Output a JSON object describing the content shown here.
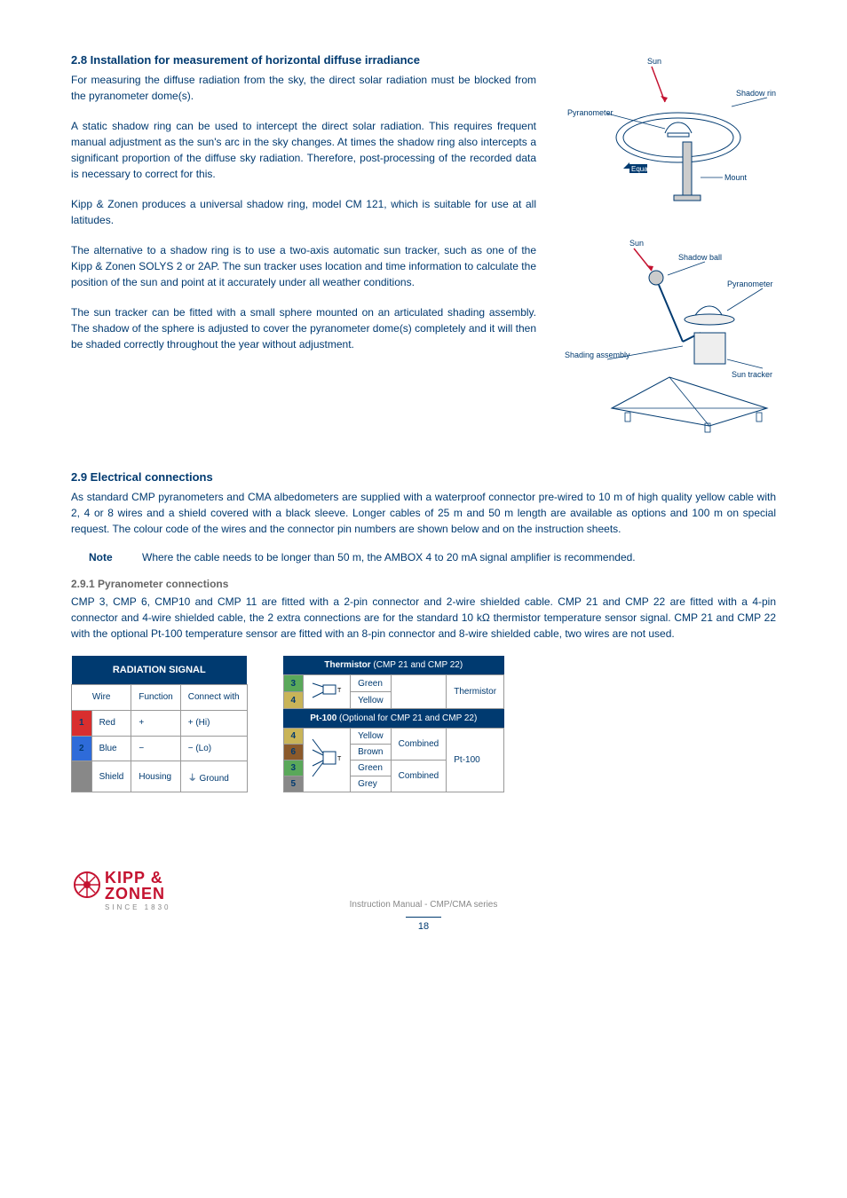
{
  "section28": {
    "heading": "2.8 Installation for measurement of horizontal diffuse irradiance",
    "p1": "For measuring the diffuse radiation from the sky, the direct solar radiation must be blocked from the pyranometer dome(s).",
    "p2": "A static shadow ring can be used to intercept the direct solar radiation. This requires frequent manual adjustment as the sun's arc in the sky changes. At times the shadow ring also intercepts a significant proportion of the diffuse sky radiation. Therefore, post-processing of the recorded data is necessary to correct for this.",
    "p3": "Kipp & Zonen produces a universal shadow ring, model CM 121, which is suitable for use at all latitudes.",
    "p4": "The alternative to a shadow ring is to use a two-axis automatic sun tracker, such as one of the Kipp & Zonen SOLYS 2 or 2AP. The sun tracker uses location and time information to calculate the position of the sun and point at it accurately under all weather conditions.",
    "p5": "The sun tracker can be fitted with a small sphere mounted on an articulated shading assembly. The shadow of the sphere is adjusted to cover the pyranometer dome(s) completely and it will then be shaded correctly throughout the year without adjustment."
  },
  "diagram1": {
    "sun": "Sun",
    "shadow_ring": "Shadow ring",
    "pyranometer": "Pyranometer",
    "equator": "Equator",
    "mount": "Mount"
  },
  "diagram2": {
    "sun": "Sun",
    "shadow_ball": "Shadow ball",
    "pyranometer": "Pyranometer",
    "shading_assembly": "Shading assembly",
    "sun_tracker": "Sun tracker"
  },
  "section29": {
    "heading": "2.9 Electrical connections",
    "p1": "As standard CMP pyranometers and CMA albedometers are supplied with a waterproof connector pre-wired to 10 m of high quality yellow cable with 2, 4 or 8 wires and a shield covered with a black sleeve. Longer cables of 25 m and 50 m length are available as options and 100 m on special request. The colour code of the wires and the connector pin numbers are shown below and on the instruction sheets.",
    "note_label": "Note",
    "note_text": "Where the cable needs to be longer than 50 m, the AMBOX 4 to 20 mA signal amplifier is recommended."
  },
  "section291": {
    "heading": "2.9.1 Pyranometer connections",
    "p1": "CMP 3, CMP 6, CMP10 and CMP 11 are fitted with a 2-pin connector and 2-wire shielded cable. CMP 21 and CMP 22 are fitted with a 4-pin connector and 4-wire shielded cable, the 2 extra connections are for the standard 10 kΩ thermistor temperature sensor signal. CMP 21 and CMP 22 with the optional Pt-100 temperature sensor are fitted with an 8-pin connector and 8-wire shielded cable, two wires are not used."
  },
  "radiation_table": {
    "title": "RADIATION SIGNAL",
    "col1": "Wire",
    "col2": "Function",
    "col3": "Connect with",
    "rows": [
      {
        "pin": "1",
        "pin_color": "#d92e2e",
        "wire": "Red",
        "func": "+",
        "connect": "+ (Hi)"
      },
      {
        "pin": "2",
        "pin_color": "#2e6bd9",
        "wire": "Blue",
        "func": "−",
        "connect": "− (Lo)"
      },
      {
        "pin": "",
        "pin_color": "#888888",
        "wire": "Shield",
        "func": "Housing",
        "connect": "⏚ Ground"
      }
    ]
  },
  "thermistor_table": {
    "header1_b": "Thermistor",
    "header1_rest": " (CMP 21 and CMP 22)",
    "rows1": [
      {
        "pin": "3",
        "pin_color": "#5aa85a",
        "wire": "Green"
      },
      {
        "pin": "4",
        "pin_color": "#c9b458",
        "wire": "Yellow"
      }
    ],
    "label1": "Thermistor",
    "header2_b": "Pt-100",
    "header2_rest": " (Optional for CMP 21 and CMP 22)",
    "rows2": [
      {
        "pin": "4",
        "pin_color": "#c9b458",
        "wire": "Yellow"
      },
      {
        "pin": "6",
        "pin_color": "#8b5a2b",
        "wire": "Brown"
      },
      {
        "pin": "3",
        "pin_color": "#5aa85a",
        "wire": "Green"
      },
      {
        "pin": "5",
        "pin_color": "#888888",
        "wire": "Grey"
      }
    ],
    "combined": "Combined",
    "label2": "Pt-100"
  },
  "footer": {
    "manual": "Instruction Manual - CMP/CMA series",
    "page": "18",
    "logo_line1": "KIPP &",
    "logo_line2": "ZONEN",
    "logo_since": "SINCE 1830"
  },
  "colors": {
    "blue": "#003a70",
    "red": "#c41230"
  }
}
